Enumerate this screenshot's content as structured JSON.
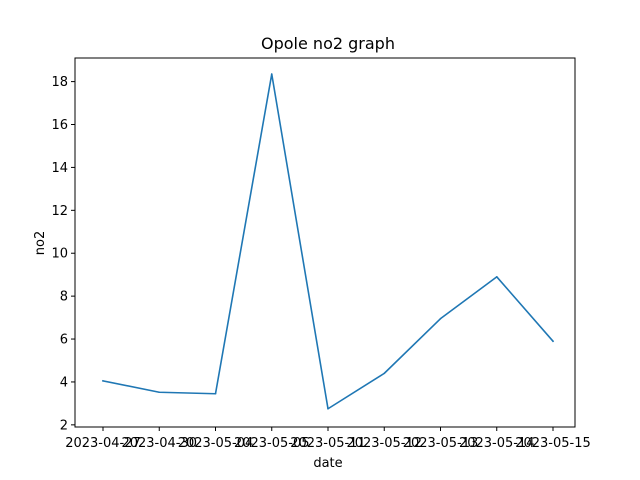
{
  "chart_data": {
    "type": "line",
    "title": "Opole no2 graph",
    "xlabel": "date",
    "ylabel": "no2",
    "x": [
      "2023-04-27",
      "2023-04-30",
      "2023-05-04",
      "2023-05-05",
      "2023-05-11",
      "2023-05-12",
      "2023-05-13",
      "2023-05-14",
      "2023-05-15"
    ],
    "x_tick_labels": [
      "2023-04-27",
      "2023-04-30",
      "2023-05-04",
      "2023-05-05",
      "2023-05-11",
      "2023-05-12",
      "2023-05-13",
      "2023-05-14",
      "2023-05-15"
    ],
    "y_ticks": [
      2,
      4,
      6,
      8,
      10,
      12,
      14,
      16,
      18
    ],
    "ylim": [
      1.9,
      19.1
    ],
    "series": [
      {
        "values": [
          4.05,
          3.52,
          3.45,
          18.35,
          2.75,
          4.4,
          6.95,
          8.9,
          5.9
        ],
        "color": "#1f77b4"
      }
    ],
    "grid": false,
    "legend": "none"
  }
}
